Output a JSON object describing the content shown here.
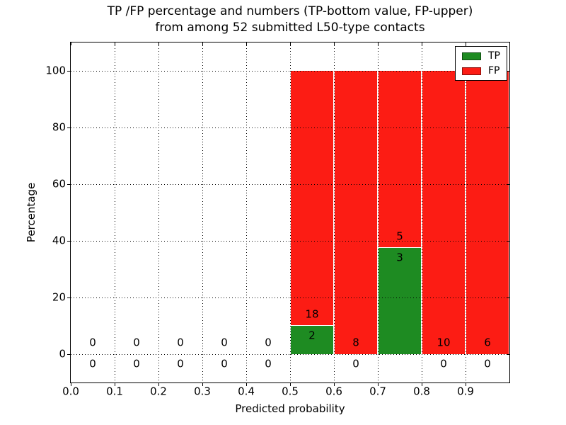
{
  "chart_data": {
    "type": "bar",
    "stacked": true,
    "title_line1": "TP /FP percentage and numbers (TP-bottom value, FP-upper)",
    "title_line2": "from among 52 submitted L50-type contacts",
    "xlabel": "Predicted probability",
    "ylabel": "Percentage",
    "xlim": [
      0.0,
      1.0
    ],
    "ylim": [
      -10,
      110
    ],
    "grid": true,
    "grid_style": "dotted",
    "legend_position": "upper right",
    "legend": [
      {
        "key": "tp",
        "label": "TP",
        "color": "#1e8b22"
      },
      {
        "key": "fp",
        "label": "FP",
        "color": "#fc1c14"
      }
    ],
    "xticks": [
      {
        "label": "0.0",
        "value": 0.0
      },
      {
        "label": "0.1",
        "value": 0.1
      },
      {
        "label": "0.2",
        "value": 0.2
      },
      {
        "label": "0.3",
        "value": 0.3
      },
      {
        "label": "0.4",
        "value": 0.4
      },
      {
        "label": "0.5",
        "value": 0.5
      },
      {
        "label": "0.6",
        "value": 0.6
      },
      {
        "label": "0.7",
        "value": 0.7
      },
      {
        "label": "0.8",
        "value": 0.8
      },
      {
        "label": "0.9",
        "value": 0.9
      }
    ],
    "yticks": [
      {
        "label": "0",
        "value": 0
      },
      {
        "label": "20",
        "value": 20
      },
      {
        "label": "40",
        "value": 40
      },
      {
        "label": "60",
        "value": 60
      },
      {
        "label": "80",
        "value": 80
      },
      {
        "label": "100",
        "value": 100
      }
    ],
    "bins": [
      {
        "range": [
          0.0,
          0.1
        ],
        "tp": 0,
        "fp": 0
      },
      {
        "range": [
          0.1,
          0.2
        ],
        "tp": 0,
        "fp": 0
      },
      {
        "range": [
          0.2,
          0.3
        ],
        "tp": 0,
        "fp": 0
      },
      {
        "range": [
          0.3,
          0.4
        ],
        "tp": 0,
        "fp": 0
      },
      {
        "range": [
          0.4,
          0.5
        ],
        "tp": 0,
        "fp": 0
      },
      {
        "range": [
          0.5,
          0.6
        ],
        "tp": 2,
        "fp": 18
      },
      {
        "range": [
          0.6,
          0.7
        ],
        "tp": 0,
        "fp": 8
      },
      {
        "range": [
          0.7,
          0.8
        ],
        "tp": 3,
        "fp": 5
      },
      {
        "range": [
          0.8,
          0.9
        ],
        "tp": 0,
        "fp": 10
      },
      {
        "range": [
          0.9,
          1.0
        ],
        "tp": 0,
        "fp": 6
      }
    ]
  }
}
